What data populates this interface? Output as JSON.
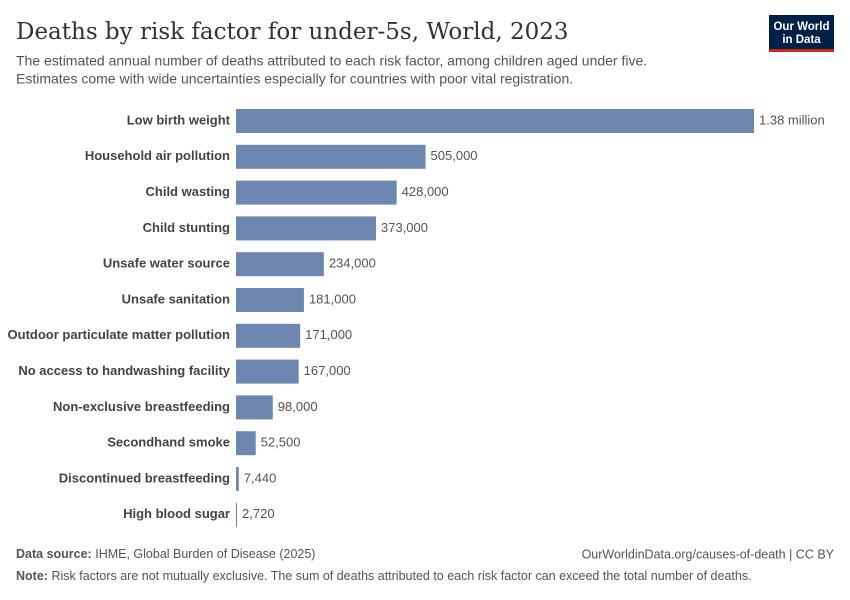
{
  "chart_data": {
    "type": "bar",
    "orientation": "horizontal",
    "title": "Deaths by risk factor for under-5s, World, 2023",
    "subtitle": [
      "The estimated annual number of deaths attributed to each risk factor, among children aged under five.",
      "Estimates come with wide uncertainties especially for countries with poor vital registration."
    ],
    "categories": [
      "Low birth weight",
      "Household air pollution",
      "Child wasting",
      "Child stunting",
      "Unsafe water source",
      "Unsafe sanitation",
      "Outdoor particulate matter pollution",
      "No access to handwashing facility",
      "Non-exclusive breastfeeding",
      "Secondhand smoke",
      "Discontinued breastfeeding",
      "High blood sugar"
    ],
    "values": [
      1380000,
      505000,
      428000,
      373000,
      234000,
      181000,
      171000,
      167000,
      98000,
      52500,
      7440,
      2720
    ],
    "value_labels": [
      "1.38 million",
      "505,000",
      "428,000",
      "373,000",
      "234,000",
      "181,000",
      "171,000",
      "167,000",
      "98,000",
      "52,500",
      "7,440",
      "2,720"
    ],
    "color": "#6d87b0"
  },
  "logo": [
    "Our World",
    "in Data"
  ],
  "footer": {
    "source_label": "Data source:",
    "source": "IHME, Global Burden of Disease (2025)",
    "link": "OurWorldinData.org/causes-of-death | CC BY",
    "note_label": "Note:",
    "note": "Risk factors are not mutually exclusive. The sum of deaths attributed to each risk factor can exceed the total number of deaths."
  }
}
